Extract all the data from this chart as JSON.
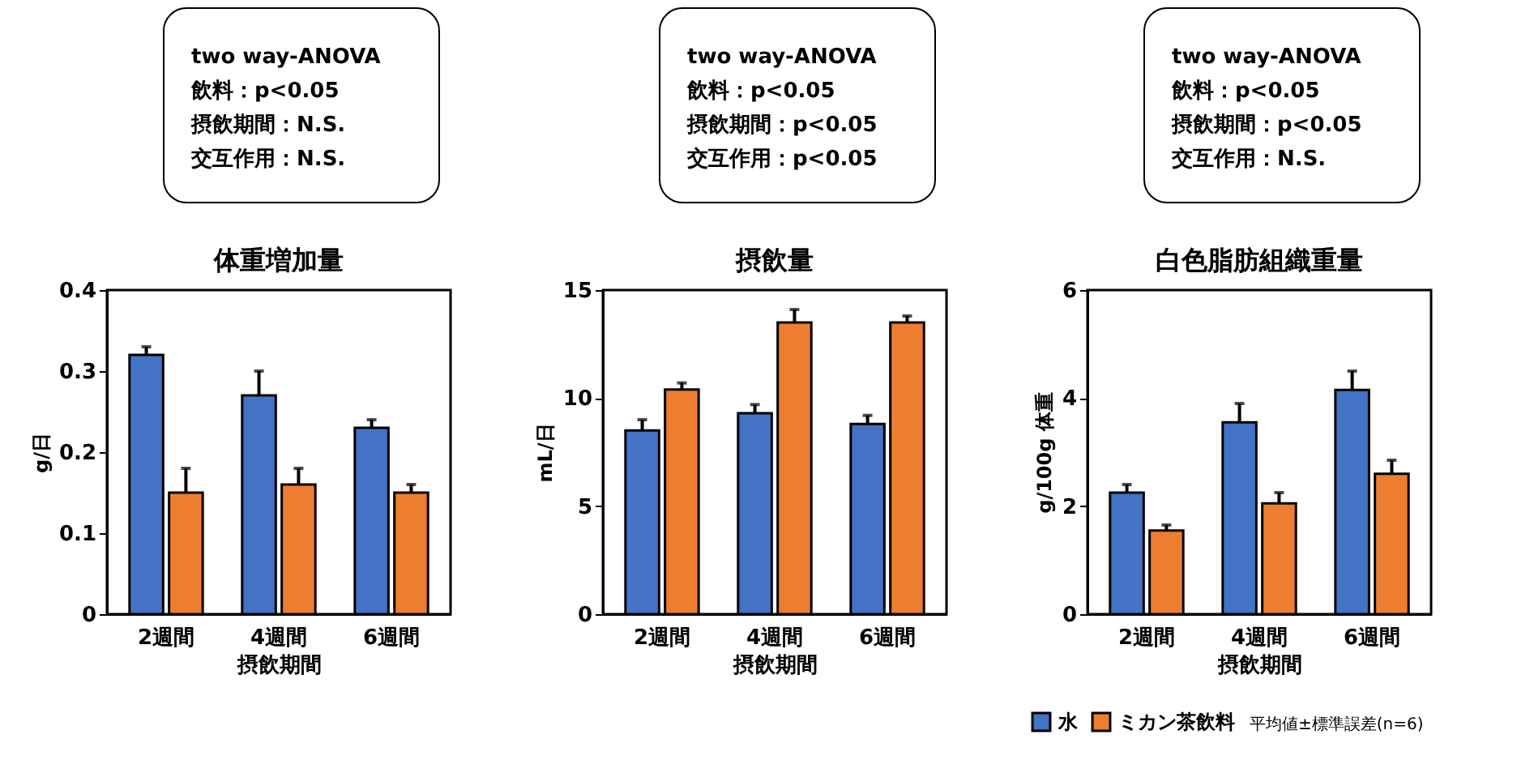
{
  "chart_data": [
    {
      "type": "bar",
      "title": "体重増加量",
      "xlabel": "摂飲期間",
      "ylabel": "g/日",
      "categories": [
        "2週間",
        "4週間",
        "6週間"
      ],
      "ylim": [
        0,
        0.4
      ],
      "yticks": [
        0,
        0.1,
        0.2,
        0.3,
        0.4
      ],
      "grid": false,
      "legend": false,
      "annotations": [
        "two way-ANOVA",
        "飲料：p<0.05",
        "摂飲期間：N.S.",
        "交互作用：N.S."
      ],
      "series": [
        {
          "color": "#4472c4",
          "values": [
            0.32,
            0.27,
            0.23
          ],
          "errors": [
            0.01,
            0.03,
            0.01
          ]
        },
        {
          "color": "#ed7d31",
          "values": [
            0.15,
            0.16,
            0.15
          ],
          "errors": [
            0.03,
            0.02,
            0.01
          ]
        }
      ]
    },
    {
      "type": "bar",
      "title": "摂飲量",
      "xlabel": "摂飲期間",
      "ylabel": "mL/日",
      "categories": [
        "2週間",
        "4週間",
        "6週間"
      ],
      "ylim": [
        0,
        15
      ],
      "yticks": [
        0,
        5,
        10,
        15
      ],
      "grid": false,
      "legend": false,
      "annotations": [
        "two way-ANOVA",
        "飲料：p<0.05",
        "摂飲期間：p<0.05",
        "交互作用：p<0.05"
      ],
      "series": [
        {
          "color": "#4472c4",
          "values": [
            8.5,
            9.3,
            8.8
          ],
          "errors": [
            0.5,
            0.4,
            0.4
          ]
        },
        {
          "color": "#ed7d31",
          "values": [
            10.4,
            13.5,
            13.5
          ],
          "errors": [
            0.3,
            0.6,
            0.3
          ]
        }
      ]
    },
    {
      "type": "bar",
      "title": "白色脂肪組織重量",
      "xlabel": "摂飲期間",
      "ylabel": "g/100g 体重",
      "categories": [
        "2週間",
        "4週間",
        "6週間"
      ],
      "ylim": [
        0,
        6
      ],
      "yticks": [
        0,
        2,
        4,
        6
      ],
      "grid": false,
      "legend": "bottom",
      "annotations": [
        "two way-ANOVA",
        "飲料：p<0.05",
        "摂飲期間：p<0.05",
        "交互作用：N.S.",
        "平均値±標準誤差(n=6)"
      ],
      "series": [
        {
          "name": "水",
          "color": "#4472c4",
          "values": [
            2.25,
            3.55,
            4.15
          ],
          "errors": [
            0.15,
            0.35,
            0.35
          ]
        },
        {
          "name": "ミカン茶飲料",
          "color": "#ed7d31",
          "values": [
            1.55,
            2.05,
            2.6
          ],
          "errors": [
            0.1,
            0.2,
            0.25
          ]
        }
      ]
    }
  ]
}
